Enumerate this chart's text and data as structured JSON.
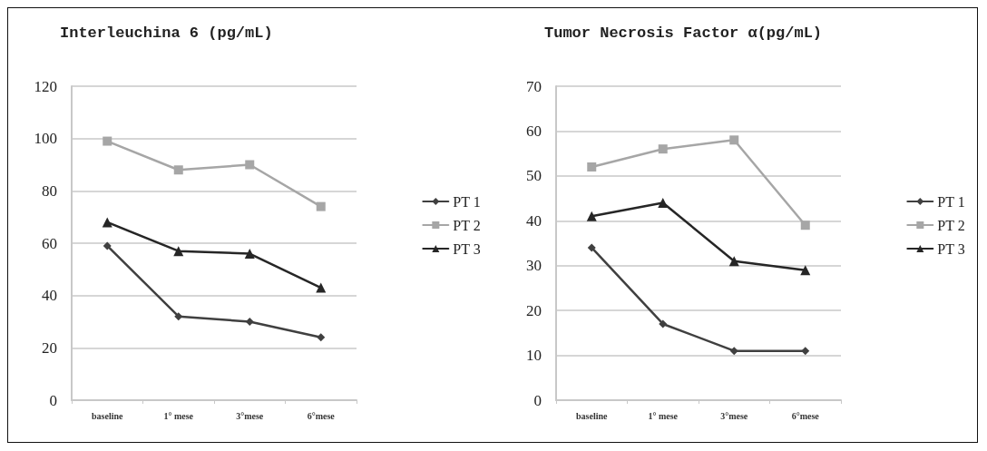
{
  "chart_data": [
    {
      "type": "line",
      "title": "Interleuchina 6 (pg/mL)",
      "categories": [
        "baseline",
        "1° mese",
        "3°mese",
        "6°mese"
      ],
      "series": [
        {
          "name": "PT 1",
          "color": "#404040",
          "marker": "diamond",
          "values": [
            59,
            32,
            30,
            24
          ]
        },
        {
          "name": "PT 2",
          "color": "#a6a6a6",
          "marker": "square",
          "values": [
            99,
            88,
            90,
            74
          ]
        },
        {
          "name": "PT 3",
          "color": "#262626",
          "marker": "triangle",
          "values": [
            68,
            57,
            56,
            43
          ]
        }
      ],
      "ylim": [
        0,
        120
      ],
      "yticks": [
        0,
        20,
        40,
        60,
        80,
        100,
        120
      ],
      "grid": "y",
      "legend": "right"
    },
    {
      "type": "line",
      "title": "Tumor Necrosis Factor α(pg/mL)",
      "categories": [
        "baseline",
        "1° mese",
        "3°mese",
        "6°mese"
      ],
      "series": [
        {
          "name": "PT 1",
          "color": "#404040",
          "marker": "diamond",
          "values": [
            34,
            17,
            11,
            11
          ]
        },
        {
          "name": "PT 2",
          "color": "#a6a6a6",
          "marker": "square",
          "values": [
            52,
            56,
            58,
            39
          ]
        },
        {
          "name": "PT 3",
          "color": "#262626",
          "marker": "triangle",
          "values": [
            41,
            44,
            31,
            29
          ]
        }
      ],
      "ylim": [
        0,
        70
      ],
      "yticks": [
        0,
        10,
        20,
        30,
        40,
        50,
        60,
        70
      ],
      "grid": "y",
      "legend": "right"
    }
  ]
}
